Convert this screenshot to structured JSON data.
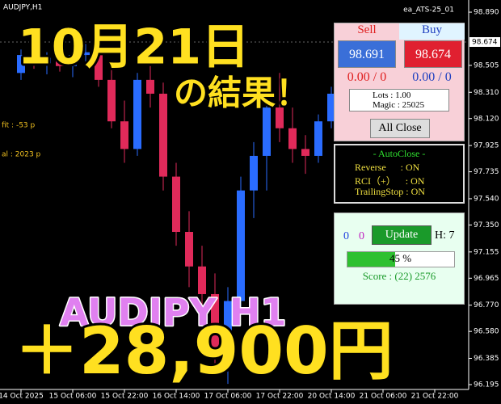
{
  "chart_data": {
    "type": "candlestick",
    "title": "AUDJPY,H1",
    "expert": "ea_ATS-25_01",
    "categories": [
      "14 Oct 2025",
      null,
      null,
      null,
      "15 Oct 06:00",
      null,
      null,
      null,
      "15 Oct 22:00",
      null,
      null,
      null,
      "16 Oct 14:00",
      null,
      null,
      null,
      "17 Oct 06:00",
      null,
      null,
      null,
      "17 Oct 22:00",
      null,
      null,
      null,
      "20 Oct 14:00",
      null,
      null,
      null,
      "21 Oct 06:00",
      null,
      null,
      null,
      "21 Oct 22:00",
      null,
      null
    ],
    "open": [
      98.45,
      98.58,
      98.52,
      98.56,
      98.5,
      98.58,
      98.6,
      98.4,
      98.1,
      97.9,
      98.4,
      98.3,
      97.7,
      97.3,
      97.05,
      96.85,
      96.45,
      96.8,
      97.6,
      97.85,
      98.2,
      98.05,
      97.9,
      97.85,
      98.1,
      null,
      null,
      null,
      null,
      null,
      null,
      null,
      null,
      null,
      null
    ],
    "high": [
      98.62,
      98.66,
      98.6,
      98.64,
      98.62,
      98.66,
      98.64,
      98.5,
      98.25,
      98.45,
      98.5,
      98.38,
      97.8,
      97.45,
      97.2,
      97.0,
      96.9,
      97.7,
      97.95,
      98.3,
      98.45,
      98.2,
      98.0,
      98.15,
      98.35,
      null,
      null,
      null,
      null,
      null,
      null,
      null,
      null,
      null,
      null
    ],
    "low": [
      98.4,
      98.48,
      98.44,
      98.46,
      98.42,
      98.5,
      98.35,
      98.05,
      97.8,
      97.85,
      98.2,
      97.6,
      97.2,
      96.9,
      96.7,
      96.3,
      96.2,
      96.75,
      97.4,
      97.6,
      97.95,
      97.8,
      97.72,
      97.8,
      98.05,
      null,
      null,
      null,
      null,
      null,
      null,
      null,
      null,
      null,
      null
    ],
    "close": [
      98.58,
      98.52,
      98.56,
      98.5,
      98.58,
      98.6,
      98.4,
      98.1,
      97.9,
      98.4,
      98.3,
      97.7,
      97.3,
      97.05,
      96.85,
      96.45,
      96.8,
      97.6,
      97.85,
      98.2,
      98.05,
      97.9,
      97.85,
      98.1,
      98.3,
      null,
      null,
      null,
      null,
      null,
      null,
      null,
      null,
      null,
      null
    ],
    "up_color": "#2a6cff",
    "down_color": "#e02a5a",
    "ylim": [
      96.16,
      98.978
    ],
    "yticks": [
      {
        "value": 98.89,
        "label": "98.890"
      },
      98.505,
      {
        "value": 98.31,
        "label": "98.310"
      },
      {
        "value": 98.12,
        "label": "98.120"
      },
      97.925,
      97.735,
      {
        "value": 97.54,
        "label": "97.540"
      },
      {
        "value": 97.35,
        "label": "97.350"
      },
      97.155,
      96.965,
      {
        "value": 96.77,
        "label": "96.770"
      },
      {
        "value": 96.58,
        "label": "96.580"
      },
      96.385,
      96.195
    ],
    "current_price": 98.674
  },
  "overlay": {
    "date": "10月21日",
    "result": "の結果！",
    "symbol": "AUDJPY H1",
    "profit": "＋28,900円",
    "left_labels": [
      "fit : -53 p",
      "al : 2023 p"
    ]
  },
  "trade_panel": {
    "sell": "Sell",
    "buy": "Buy",
    "sell_price": "98.691",
    "buy_price": "98.674",
    "sell_pl": "0.00 / 0",
    "buy_pl": "0.00 / 0",
    "lots": "Lots : 1.00",
    "magic": "Magic : 25025",
    "close_button": "All Close"
  },
  "autoclose_panel": {
    "title": "- AutoClose -",
    "rows": [
      "Reverse      : ON",
      "RCI（+）    : ON",
      "TrailingStop : ON"
    ]
  },
  "score_panel": {
    "count_a": "0",
    "count_b": "0",
    "update_button": "Update",
    "hours": "H: 7",
    "progress": "45 %",
    "score": "Score : (22) 2576"
  }
}
